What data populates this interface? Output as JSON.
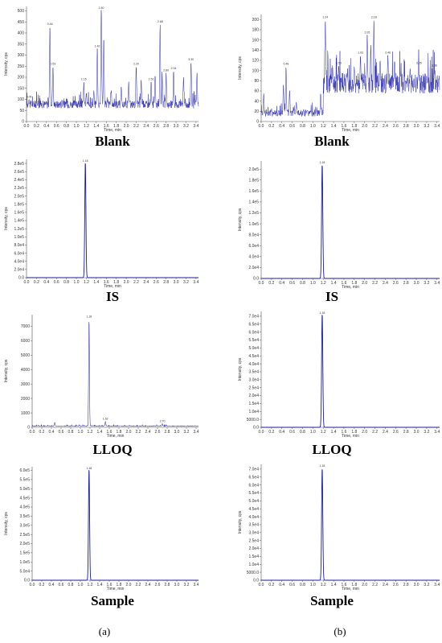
{
  "column_labels": [
    "(a)",
    "(b)"
  ],
  "chart_data": [
    {
      "type": "line",
      "panel": "a-blank",
      "caption": "Blank",
      "xlabel": "Time, min",
      "ylabel": "Intensity, cps",
      "xlim": [
        0,
        3.45
      ],
      "ylim": [
        0,
        520
      ],
      "xticks": [
        "0.0",
        "0.2",
        "0.4",
        "0.6",
        "0.8",
        "1.0",
        "1.2",
        "1.4",
        "1.6",
        "1.8",
        "2.0",
        "2.2",
        "2.4",
        "2.6",
        "2.8",
        "3.0",
        "3.2",
        "3.4"
      ],
      "yticks": [
        "0",
        "50",
        "100",
        "150",
        "200",
        "250",
        "300",
        "350",
        "400",
        "450",
        "500"
      ],
      "ytick_values": [
        0,
        50,
        100,
        150,
        200,
        250,
        300,
        350,
        400,
        450,
        500
      ],
      "color": "#2f2fb0",
      "baseline": 60,
      "noise": 35,
      "noise_start": 0.0,
      "peaks": [
        [
          0.05,
          100
        ],
        [
          0.22,
          75
        ],
        [
          0.47,
          430
        ],
        [
          0.53,
          250
        ],
        [
          0.85,
          60
        ],
        [
          1.15,
          180
        ],
        [
          1.2,
          130
        ],
        [
          1.35,
          140
        ],
        [
          1.42,
          330
        ],
        [
          1.5,
          512
        ],
        [
          1.55,
          380
        ],
        [
          1.7,
          140
        ],
        [
          1.9,
          160
        ],
        [
          2.05,
          180
        ],
        [
          2.2,
          250
        ],
        [
          2.3,
          190
        ],
        [
          2.5,
          180
        ],
        [
          2.58,
          210
        ],
        [
          2.68,
          440
        ],
        [
          2.72,
          225
        ],
        [
          2.8,
          220
        ],
        [
          2.95,
          230
        ],
        [
          3.15,
          200
        ],
        [
          3.3,
          270
        ],
        [
          3.42,
          220
        ]
      ],
      "peak_labels": [
        {
          "x": 0.05,
          "text": "0.05"
        },
        {
          "x": 0.22,
          "text": "0.22"
        },
        {
          "x": 0.47,
          "text": "0.46"
        },
        {
          "x": 0.53,
          "text": "0.53"
        },
        {
          "x": 1.15,
          "text": "1.15"
        },
        {
          "x": 1.42,
          "text": "1.42"
        },
        {
          "x": 1.5,
          "text": "1.50"
        },
        {
          "x": 2.2,
          "text": "2.20"
        },
        {
          "x": 2.5,
          "text": "2.51"
        },
        {
          "x": 2.68,
          "text": "2.68"
        },
        {
          "x": 2.8,
          "text": "2.80"
        },
        {
          "x": 2.95,
          "text": "2.94"
        },
        {
          "x": 3.3,
          "text": "3.30"
        }
      ]
    },
    {
      "type": "line",
      "panel": "b-blank",
      "caption": "Blank",
      "xlabel": "Time, min",
      "ylabel": "Intensity, cps",
      "xlim": [
        0,
        3.45
      ],
      "ylim": [
        0,
        210
      ],
      "xticks": [
        "0.0",
        "0.2",
        "0.4",
        "0.6",
        "0.8",
        "1.0",
        "1.2",
        "1.4",
        "1.6",
        "1.8",
        "2.0",
        "2.2",
        "2.4",
        "2.6",
        "2.8",
        "3.0",
        "3.2",
        "3.4"
      ],
      "yticks": [
        "0",
        "20",
        "40",
        "60",
        "80",
        "100",
        "120",
        "140",
        "160",
        "180",
        "200"
      ],
      "ytick_values": [
        0,
        20,
        40,
        60,
        80,
        100,
        120,
        140,
        160,
        180,
        200
      ],
      "color": "#2f2fb0",
      "baseline": 10,
      "noise": 14,
      "noise_start": 0.0,
      "rise_after": 1.2,
      "rise_baseline": 55,
      "rise_noise": 40,
      "peaks": [
        [
          0.05,
          55
        ],
        [
          0.43,
          72
        ],
        [
          0.48,
          108
        ],
        [
          0.55,
          62
        ],
        [
          0.68,
          38
        ],
        [
          1.15,
          55
        ],
        [
          1.24,
          200
        ],
        [
          1.38,
          110
        ],
        [
          1.5,
          110
        ],
        [
          1.65,
          75
        ],
        [
          1.8,
          108
        ],
        [
          1.92,
          130
        ],
        [
          2.05,
          170
        ],
        [
          2.12,
          150
        ],
        [
          2.18,
          200
        ],
        [
          2.3,
          120
        ],
        [
          2.45,
          130
        ],
        [
          2.58,
          120
        ],
        [
          2.7,
          95
        ],
        [
          2.88,
          105
        ],
        [
          3.05,
          110
        ],
        [
          3.2,
          90
        ],
        [
          3.35,
          105
        ]
      ],
      "peak_labels": [
        {
          "x": 0.48,
          "text": "0.48"
        },
        {
          "x": 1.24,
          "text": "1.24"
        },
        {
          "x": 1.5,
          "text": "1.50"
        },
        {
          "x": 1.92,
          "text": "1.93"
        },
        {
          "x": 2.05,
          "text": "2.05"
        },
        {
          "x": 2.18,
          "text": "2.18"
        },
        {
          "x": 2.45,
          "text": "2.46"
        },
        {
          "x": 3.05,
          "text": "3.05"
        },
        {
          "x": 3.35,
          "text": "3.36"
        }
      ]
    },
    {
      "type": "line",
      "panel": "a-is",
      "caption": "IS",
      "xlabel": "Time, min",
      "ylabel": "Intensity, cps",
      "xlim": [
        0,
        3.45
      ],
      "ylim": [
        0,
        290000
      ],
      "xticks": [
        "0.0",
        "0.2",
        "0.4",
        "0.6",
        "0.8",
        "1.0",
        "1.2",
        "1.4",
        "1.6",
        "1.8",
        "2.0",
        "2.2",
        "2.4",
        "2.6",
        "2.8",
        "3.0",
        "3.2",
        "3.4"
      ],
      "yticks": [
        "0.0",
        "2.0e4",
        "4.0e4",
        "6.0e4",
        "8.0e4",
        "1.0e5",
        "1.2e5",
        "1.4e5",
        "1.6e5",
        "1.8e5",
        "2.0e5",
        "2.2e5",
        "2.4e5",
        "2.6e5",
        "2.8e5"
      ],
      "ytick_values": [
        0,
        20000,
        40000,
        60000,
        80000,
        100000,
        120000,
        140000,
        160000,
        180000,
        200000,
        220000,
        240000,
        260000,
        280000
      ],
      "color": "#1a1aa0",
      "baseline": 0,
      "noise": 0,
      "peaks": [
        [
          1.18,
          285000
        ]
      ],
      "peak_labels": [
        {
          "x": 1.18,
          "text": "1.18"
        }
      ]
    },
    {
      "type": "line",
      "panel": "b-is",
      "caption": "IS",
      "xlabel": "Time, min",
      "ylabel": "Intensity, cps",
      "xlim": [
        0,
        3.45
      ],
      "ylim": [
        0,
        215000
      ],
      "xticks": [
        "0.0",
        "0.2",
        "0.4",
        "0.6",
        "0.8",
        "1.0",
        "1.2",
        "1.4",
        "1.6",
        "1.8",
        "2.0",
        "2.2",
        "2.4",
        "2.6",
        "2.8",
        "3.0",
        "3.2",
        "3.4"
      ],
      "yticks": [
        "0.0",
        "2.0e4",
        "4.0e4",
        "6.0e4",
        "8.0e4",
        "1.0e5",
        "1.2e5",
        "1.4e5",
        "1.6e5",
        "1.8e5",
        "2.0e5"
      ],
      "ytick_values": [
        0,
        20000,
        40000,
        60000,
        80000,
        100000,
        120000,
        140000,
        160000,
        180000,
        200000
      ],
      "color": "#1a1aa0",
      "baseline": 0,
      "noise": 0,
      "peaks": [
        [
          1.18,
          210000
        ]
      ],
      "peak_labels": [
        {
          "x": 1.18,
          "text": "1.18"
        }
      ]
    },
    {
      "type": "line",
      "panel": "a-lloq",
      "caption": "LLOQ",
      "xlabel": "Time, min",
      "ylabel": "Intensity, cps",
      "xlim": [
        0,
        3.45
      ],
      "ylim": [
        0,
        7800
      ],
      "xticks": [
        "0.0",
        "0.2",
        "0.4",
        "0.6",
        "0.8",
        "1.0",
        "1.2",
        "1.4",
        "1.6",
        "1.8",
        "2.0",
        "2.2",
        "2.4",
        "2.6",
        "2.8",
        "3.0",
        "3.2",
        "3.4"
      ],
      "yticks": [
        "0",
        "1000",
        "2000",
        "3000",
        "4000",
        "5000",
        "6000",
        "7000"
      ],
      "ytick_values": [
        0,
        1000,
        2000,
        3000,
        4000,
        5000,
        6000,
        7000
      ],
      "color": "#1a1aa0",
      "baseline": 60,
      "noise": 60,
      "peaks": [
        [
          0.47,
          350
        ],
        [
          1.18,
          7500
        ],
        [
          1.52,
          420
        ],
        [
          2.7,
          260
        ]
      ],
      "peak_labels": [
        {
          "x": 1.18,
          "text": "1.18"
        },
        {
          "x": 1.52,
          "text": "1.52"
        },
        {
          "x": 2.7,
          "text": "2.70"
        }
      ]
    },
    {
      "type": "line",
      "panel": "b-lloq",
      "caption": "LLOQ",
      "xlabel": "Time, min",
      "ylabel": "Intensity, cps",
      "xlim": [
        0,
        3.45
      ],
      "ylim": [
        0,
        73000
      ],
      "xticks": [
        "0.0",
        "0.2",
        "0.4",
        "0.6",
        "0.8",
        "1.0",
        "1.2",
        "1.4",
        "1.6",
        "1.8",
        "2.0",
        "2.2",
        "2.4",
        "2.6",
        "2.8",
        "3.0",
        "3.2",
        "3.4"
      ],
      "yticks": [
        "0.0",
        "5000.0",
        "1.0e4",
        "1.5e4",
        "2.0e4",
        "2.5e4",
        "3.0e4",
        "3.5e4",
        "4.0e4",
        "4.5e4",
        "5.0e4",
        "5.5e4",
        "6.0e4",
        "6.5e4",
        "7.0e4"
      ],
      "ytick_values": [
        0,
        5000,
        10000,
        15000,
        20000,
        25000,
        30000,
        35000,
        40000,
        45000,
        50000,
        55000,
        60000,
        65000,
        70000
      ],
      "color": "#1a1aa0",
      "baseline": 0,
      "noise": 0,
      "peaks": [
        [
          1.18,
          72000
        ]
      ],
      "peak_labels": [
        {
          "x": 1.18,
          "text": "1.18"
        }
      ]
    },
    {
      "type": "line",
      "panel": "a-sample",
      "caption": "Sample",
      "xlabel": "Time, min",
      "ylabel": "Intensity, cps",
      "xlim": [
        0,
        3.45
      ],
      "ylim": [
        0,
        620000
      ],
      "xticks": [
        "0.0",
        "0.2",
        "0.4",
        "0.6",
        "0.8",
        "1.0",
        "1.2",
        "1.4",
        "1.6",
        "1.8",
        "2.0",
        "2.2",
        "2.4",
        "2.6",
        "2.8",
        "3.0",
        "3.2",
        "3.4"
      ],
      "yticks": [
        "0.0",
        "5.0e4",
        "1.0e5",
        "1.5e5",
        "2.0e5",
        "2.5e5",
        "3.0e5",
        "3.5e5",
        "4.0e5",
        "4.5e5",
        "5.0e5",
        "5.5e5",
        "6.0e5"
      ],
      "ytick_values": [
        0,
        50000,
        100000,
        150000,
        200000,
        250000,
        300000,
        350000,
        400000,
        450000,
        500000,
        550000,
        600000
      ],
      "color": "#1a1aa0",
      "baseline": 0,
      "noise": 0,
      "peaks": [
        [
          1.18,
          612000
        ]
      ],
      "peak_labels": [
        {
          "x": 1.18,
          "text": "1.18"
        }
      ]
    },
    {
      "type": "line",
      "panel": "b-sample",
      "caption": "Sample",
      "xlabel": "Time, min",
      "ylabel": "Intensity, cps",
      "xlim": [
        0,
        3.45
      ],
      "ylim": [
        0,
        73000
      ],
      "xticks": [
        "0.0",
        "0.2",
        "0.4",
        "0.6",
        "0.8",
        "1.0",
        "1.2",
        "1.4",
        "1.6",
        "1.8",
        "2.0",
        "2.2",
        "2.4",
        "2.6",
        "2.8",
        "3.0",
        "3.2",
        "3.4"
      ],
      "yticks": [
        "0.0",
        "5000.0",
        "1.0e4",
        "1.5e4",
        "2.0e4",
        "2.5e4",
        "3.0e4",
        "3.5e4",
        "4.0e4",
        "4.5e4",
        "5.0e4",
        "5.5e4",
        "6.0e4",
        "6.5e4",
        "7.0e4"
      ],
      "ytick_values": [
        0,
        5000,
        10000,
        15000,
        20000,
        25000,
        30000,
        35000,
        40000,
        45000,
        50000,
        55000,
        60000,
        65000,
        70000
      ],
      "color": "#1a1aa0",
      "baseline": 0,
      "noise": 0,
      "peaks": [
        [
          1.18,
          71000
        ]
      ],
      "peak_labels": [
        {
          "x": 1.18,
          "text": "1.18"
        }
      ]
    }
  ]
}
